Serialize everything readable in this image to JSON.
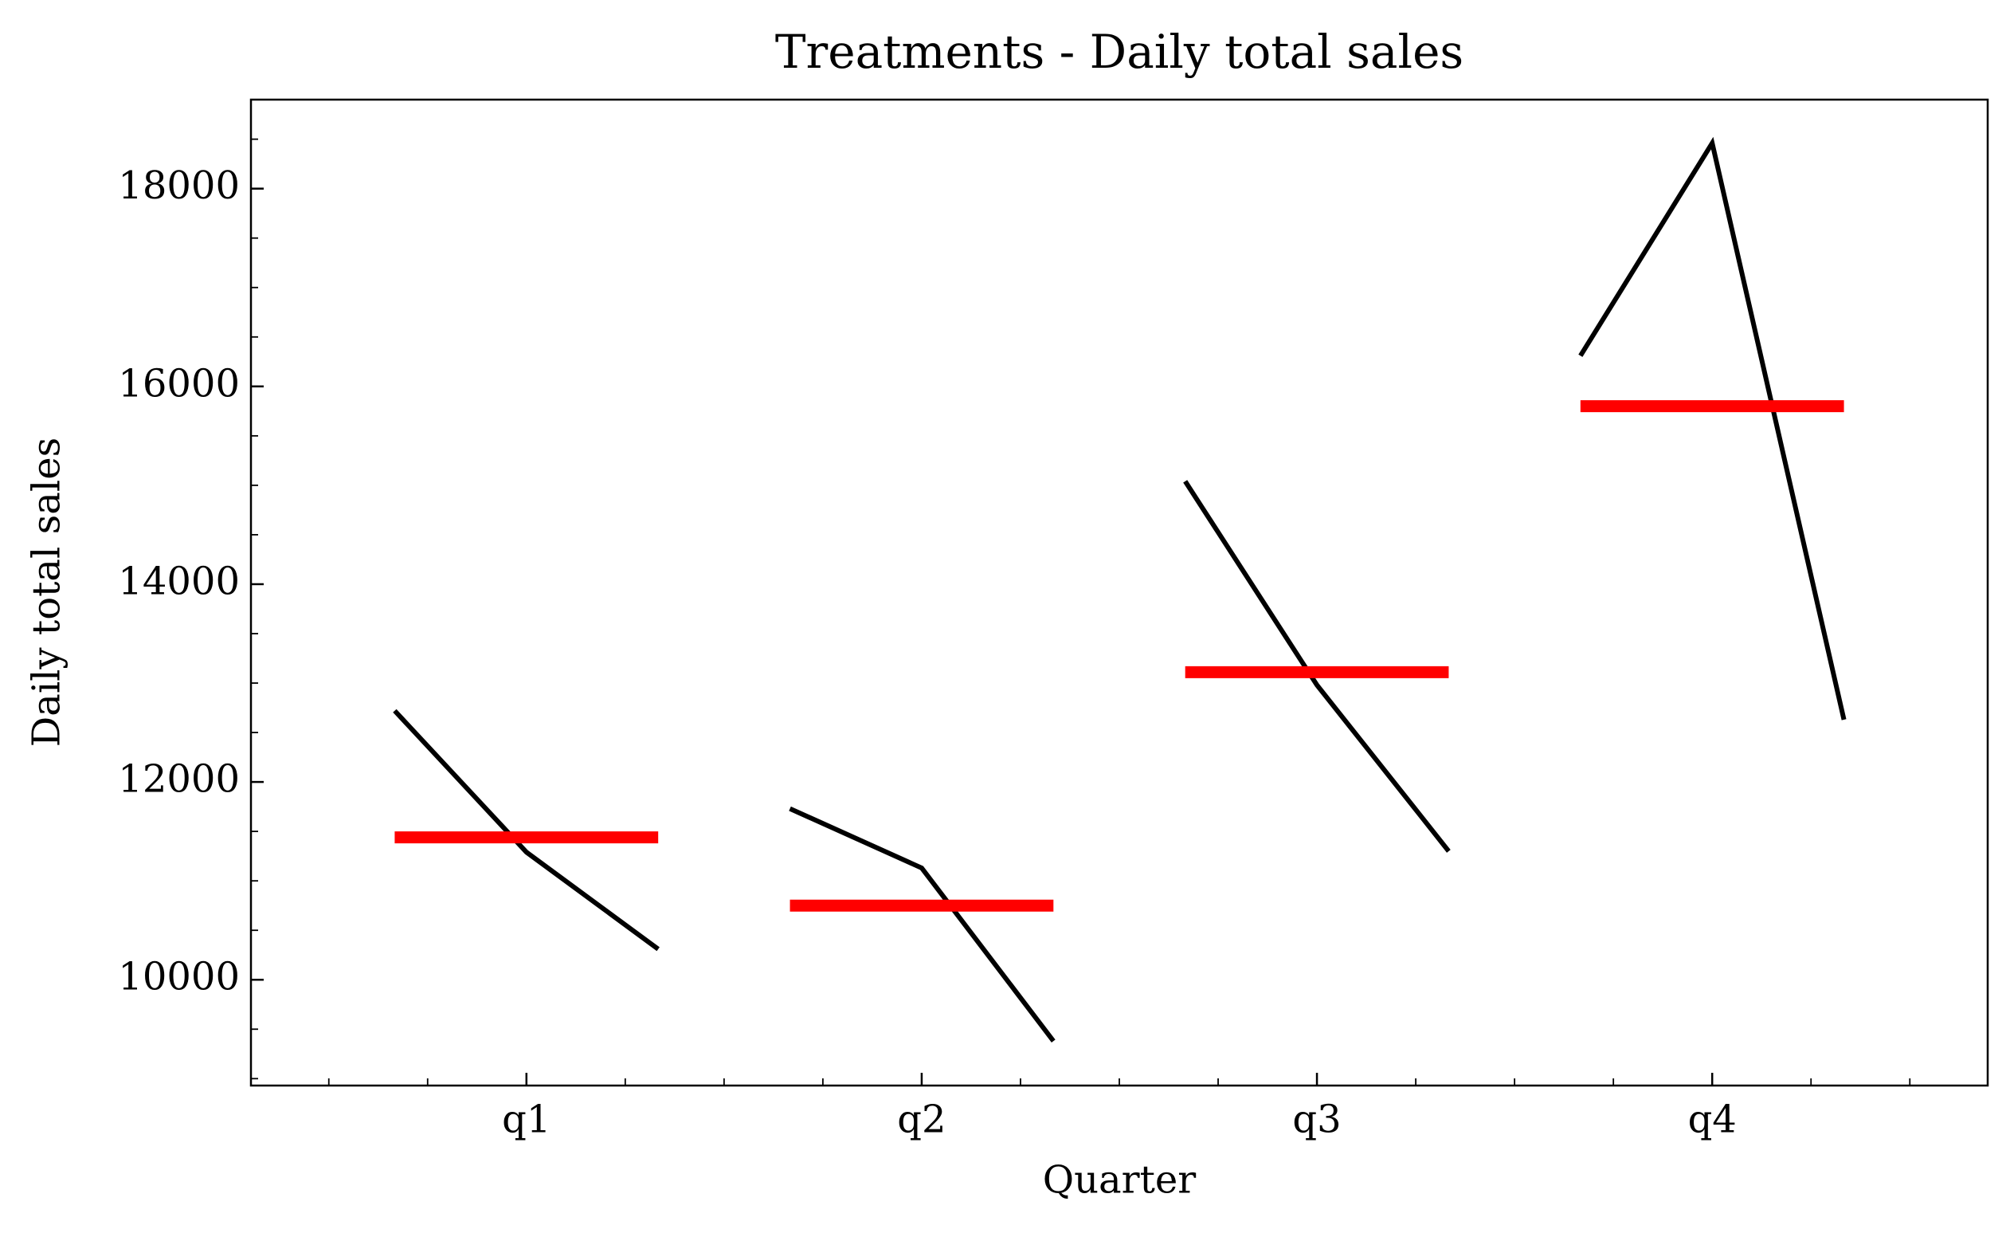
{
  "chart_data": {
    "type": "line",
    "title": "Treatments - Daily total sales",
    "xlabel": "Quarter",
    "ylabel": "Daily total sales",
    "categories": [
      "q1",
      "q2",
      "q3",
      "q4"
    ],
    "values": [
      [
        12720,
        11290,
        10310
      ],
      [
        11730,
        11130,
        9380
      ],
      [
        15040,
        12980,
        11300
      ],
      [
        16310,
        18460,
        12630
      ]
    ],
    "means": [
      11440,
      10750,
      13110,
      15800
    ],
    "color": "#000000",
    "mean_color": "#ff0000",
    "ylim": [
      8930,
      18900
    ],
    "yticks": [
      10000,
      12000,
      14000,
      16000,
      18000
    ]
  }
}
